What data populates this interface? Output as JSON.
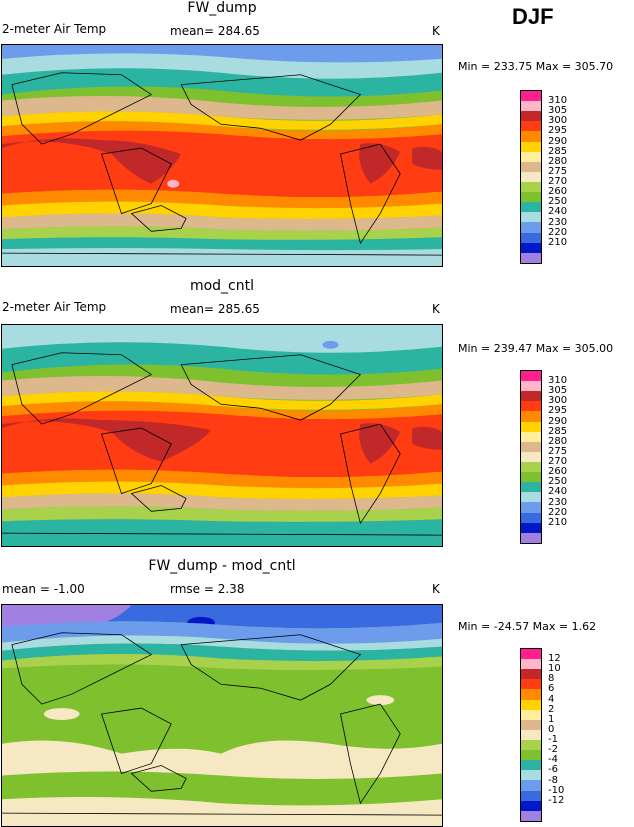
{
  "season": "DJF",
  "panels": [
    {
      "title": "FW_dump",
      "variable": "2-meter Air Temp",
      "stat1": "mean= 284.65",
      "stat2": "",
      "units": "K",
      "minmax": "Min = 233.75 Max = 305.70",
      "colorbar": {
        "ticks": [
          "310",
          "305",
          "300",
          "295",
          "290",
          "285",
          "280",
          "275",
          "270",
          "260",
          "250",
          "240",
          "230",
          "220",
          "210"
        ],
        "colors": [
          "#ff1f8f",
          "#ffb6c8",
          "#c0282a",
          "#ff3c12",
          "#ff8a00",
          "#ffd200",
          "#ffee9a",
          "#dcb88c",
          "#f6e8c2",
          "#a8d24c",
          "#7ec02e",
          "#2cb4a2",
          "#a8dce0",
          "#6e9cec",
          "#3a6ae0",
          "#0018c8",
          "#a080e0"
        ]
      }
    },
    {
      "title": "mod_cntl",
      "variable": "2-meter Air Temp",
      "stat1": "mean= 285.65",
      "stat2": "",
      "units": "K",
      "minmax": "Min = 239.47 Max = 305.00",
      "colorbar": {
        "ticks": [
          "310",
          "305",
          "300",
          "295",
          "290",
          "285",
          "280",
          "275",
          "270",
          "260",
          "250",
          "240",
          "230",
          "220",
          "210"
        ],
        "colors": [
          "#ff1f8f",
          "#ffb6c8",
          "#c0282a",
          "#ff3c12",
          "#ff8a00",
          "#ffd200",
          "#ffee9a",
          "#dcb88c",
          "#f6e8c2",
          "#a8d24c",
          "#7ec02e",
          "#2cb4a2",
          "#a8dce0",
          "#6e9cec",
          "#3a6ae0",
          "#0018c8",
          "#a080e0"
        ]
      }
    },
    {
      "title": "FW_dump - mod_cntl",
      "variable": "",
      "stat1": "mean =  -1.00",
      "stat2": "rmse =    2.38",
      "units": "K",
      "minmax": "Min = -24.57 Max =    1.62",
      "colorbar": {
        "ticks": [
          "12",
          "10",
          "8",
          "6",
          "4",
          "2",
          "1",
          "0",
          "-1",
          "-2",
          "-4",
          "-6",
          "-8",
          "-10",
          "-12"
        ],
        "colors": [
          "#ff1f8f",
          "#ffb6c8",
          "#c0282a",
          "#ff3c12",
          "#ff8a00",
          "#ffd200",
          "#ffee9a",
          "#dcb88c",
          "#f6e8c2",
          "#a8d24c",
          "#7ec02e",
          "#2cb4a2",
          "#a8dce0",
          "#6e9cec",
          "#3a6ae0",
          "#0018c8",
          "#a080e0"
        ]
      }
    }
  ]
}
